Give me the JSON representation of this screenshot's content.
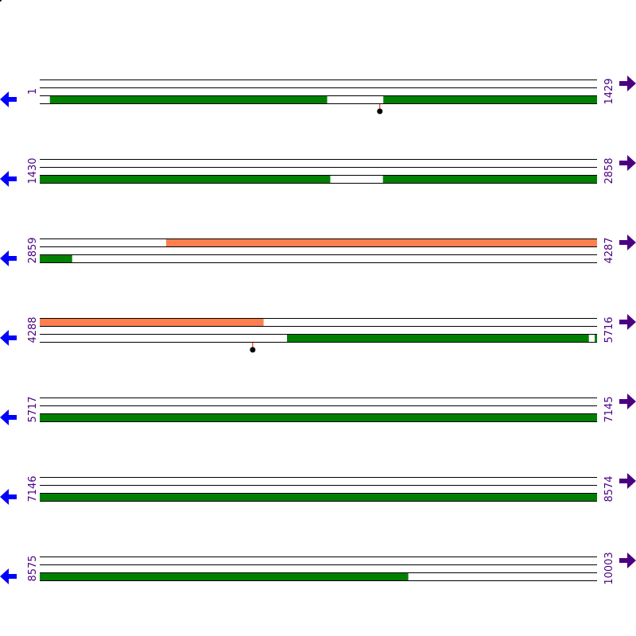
{
  "colors": {
    "line": "#000000",
    "cds": "#008000",
    "feature": "#ff7f50",
    "label": "#4b0082",
    "left_arrow": "#0000ff",
    "right_arrow": "#4b0082",
    "marker_stem": "#ff0000",
    "marker_head": "#000000"
  },
  "icons": {
    "left": "arrow-left-icon",
    "right": "arrow-right-icon"
  },
  "rows": [
    {
      "start": "1",
      "end": "1429",
      "s": 1,
      "e": 1429,
      "lower": [
        [
          27,
          737
        ],
        [
          882,
          1429
        ]
      ],
      "upper": [],
      "markers": [
        873
      ]
    },
    {
      "start": "1430",
      "end": "2858",
      "s": 1430,
      "e": 2858,
      "lower": [
        [
          1430,
          2174
        ],
        [
          2310,
          2858
        ]
      ],
      "upper": [],
      "markers": []
    },
    {
      "start": "2859",
      "end": "4287",
      "s": 2859,
      "e": 4287,
      "lower": [
        [
          2859,
          2941
        ]
      ],
      "upper": [
        [
          3183,
          4287
        ]
      ],
      "markers": []
    },
    {
      "start": "4288",
      "end": "5716",
      "s": 4288,
      "e": 5716,
      "lower": [
        [
          4922,
          5695
        ],
        [
          5711,
          5716
        ]
      ],
      "upper": [
        [
          4288,
          4861
        ]
      ],
      "markers": [
        4834
      ]
    },
    {
      "start": "5717",
      "end": "7145",
      "s": 5717,
      "e": 7145,
      "lower": [
        [
          5717,
          7145
        ]
      ],
      "upper": [],
      "markers": []
    },
    {
      "start": "7146",
      "end": "8574",
      "s": 7146,
      "e": 8574,
      "lower": [
        [
          7146,
          8574
        ]
      ],
      "upper": [],
      "markers": []
    },
    {
      "start": "8575",
      "end": "10003",
      "s": 8575,
      "e": 10003,
      "lower": [
        [
          8575,
          9519
        ]
      ],
      "upper": [],
      "markers": []
    }
  ]
}
